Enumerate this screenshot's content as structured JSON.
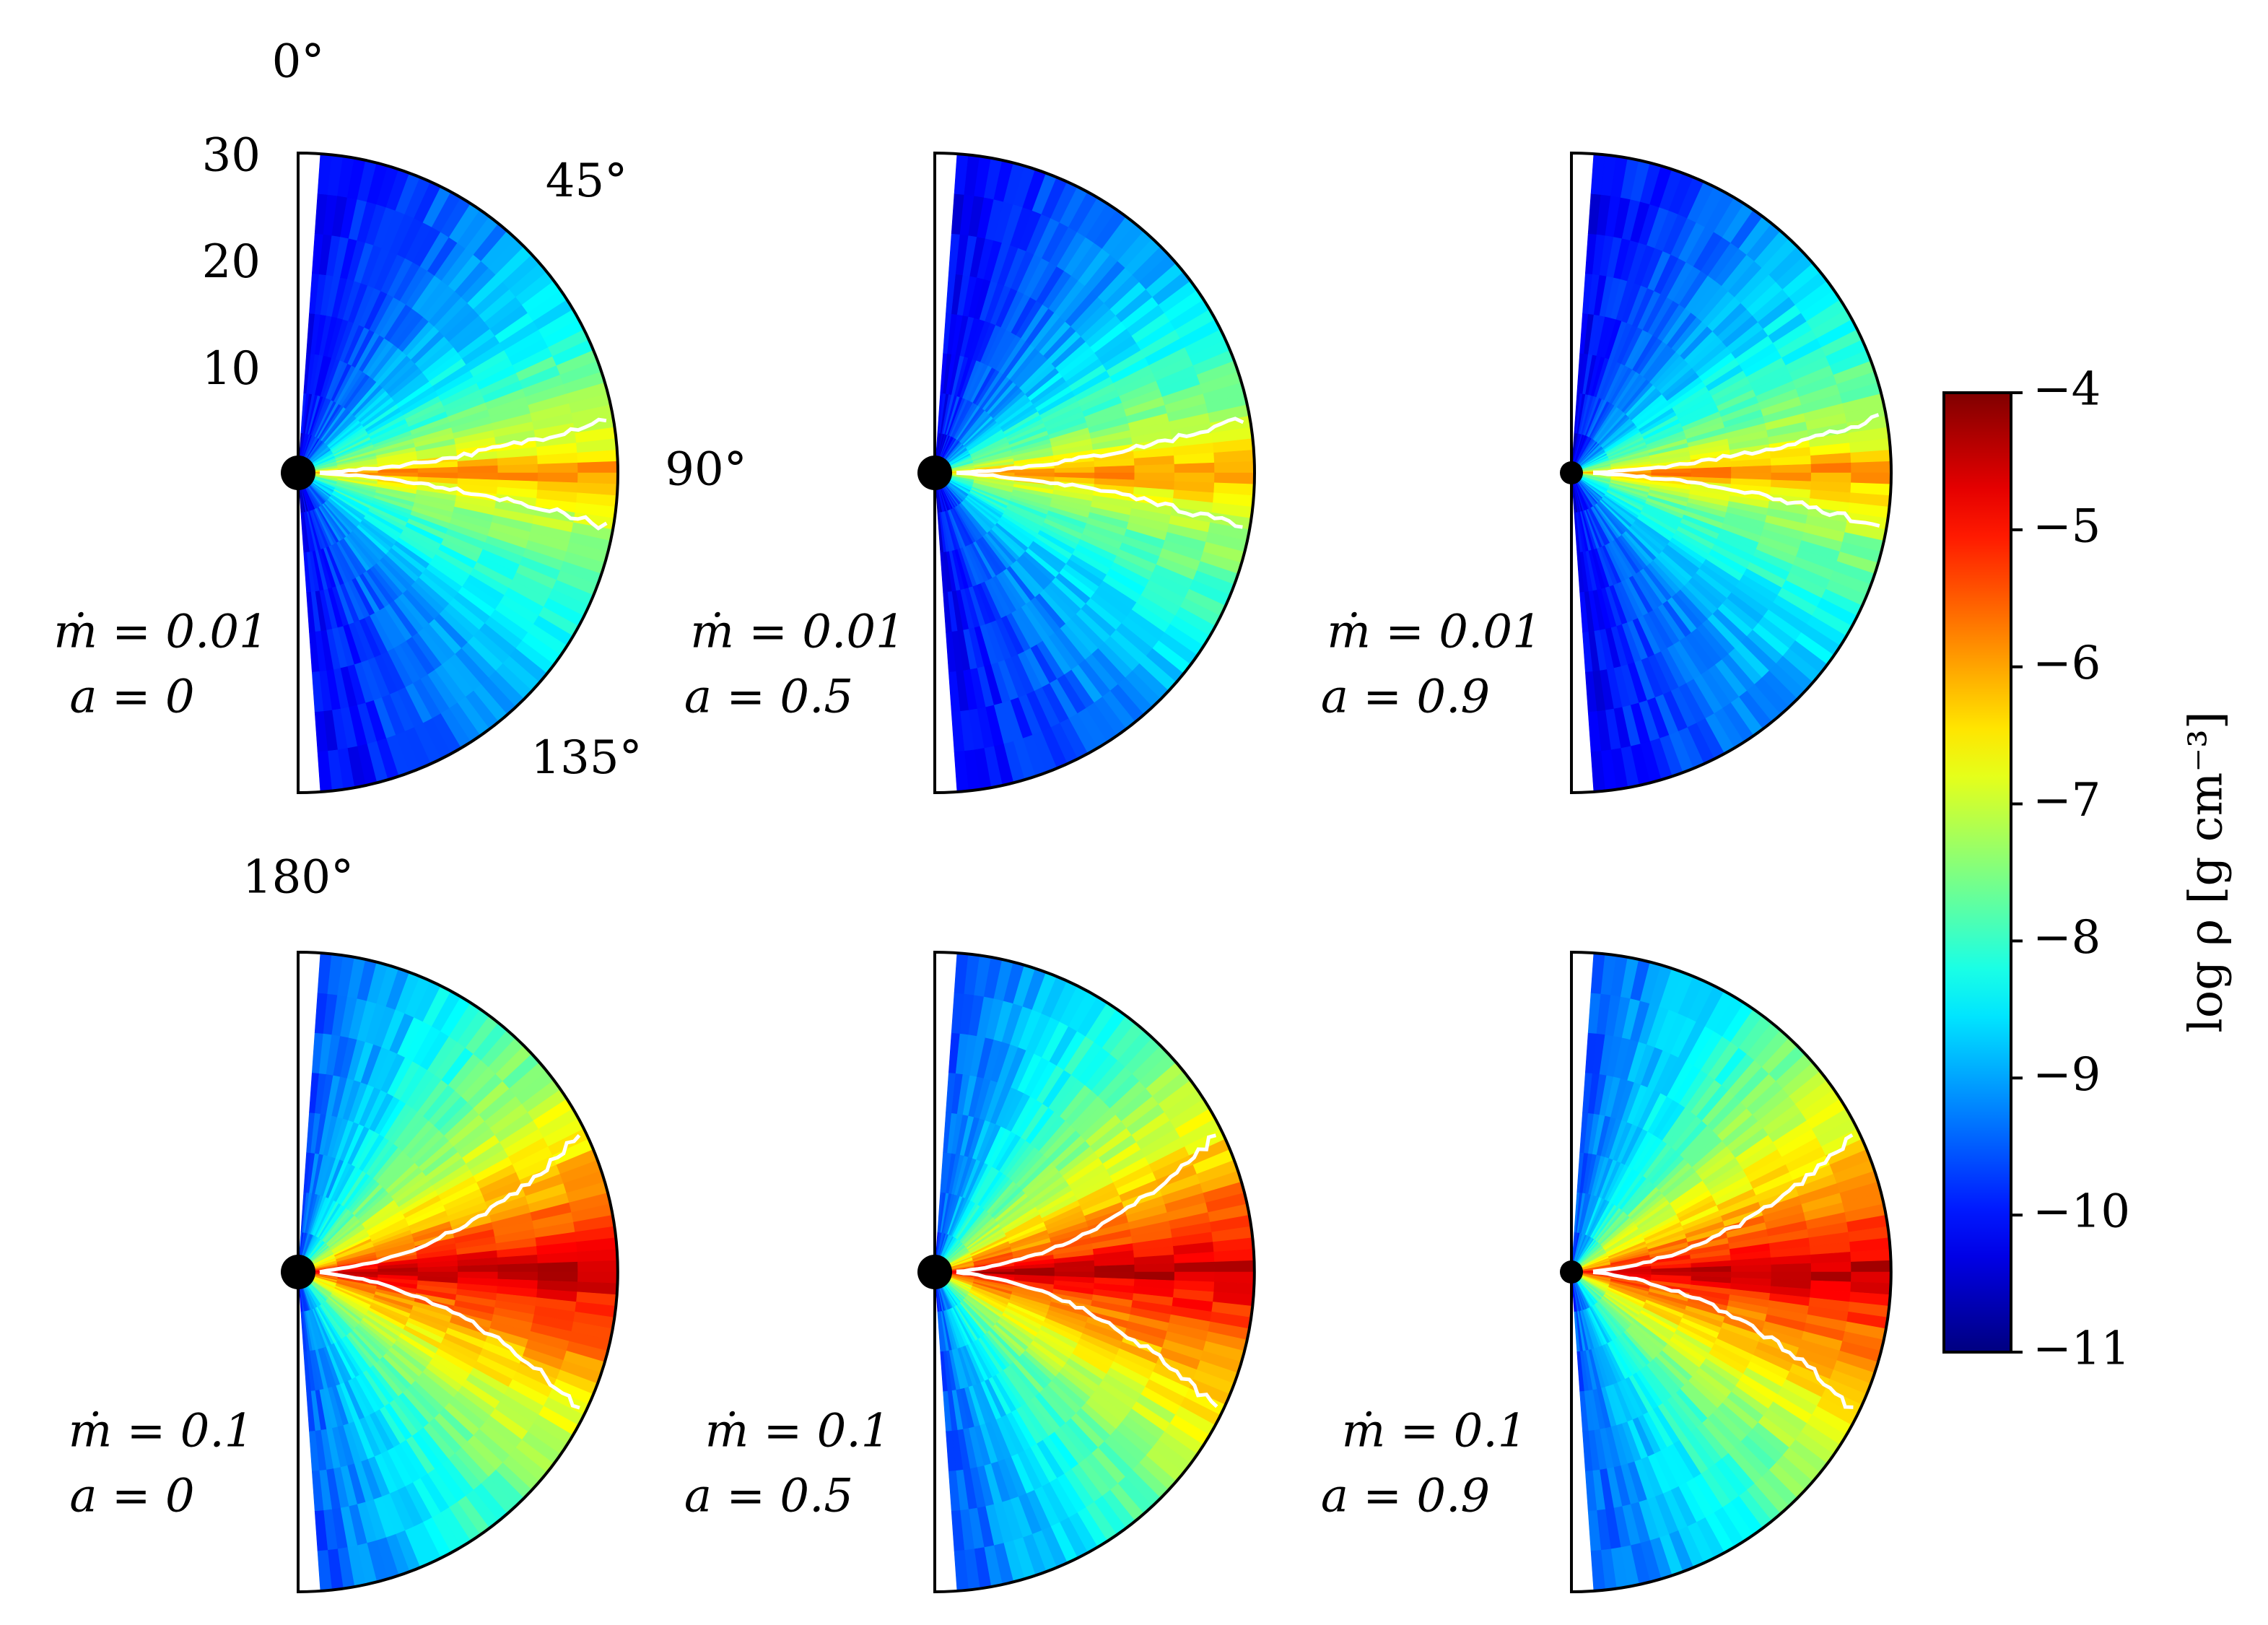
{
  "chart_data": {
    "type": "polar-density",
    "colormap": "jet",
    "rlim": [
      0,
      30
    ],
    "rticks": [
      10,
      20,
      30
    ],
    "theta_ticks": [
      {
        "value": 0,
        "label": "0°"
      },
      {
        "value": 45,
        "label": "45°"
      },
      {
        "value": 90,
        "label": "90°"
      },
      {
        "value": 135,
        "label": "135°"
      },
      {
        "value": 180,
        "label": "180°"
      }
    ],
    "panels": [
      {
        "mdot": "ṁ = 0.01",
        "spin": "a = 0"
      },
      {
        "mdot": "ṁ = 0.01",
        "spin": "a = 0.5"
      },
      {
        "mdot": "ṁ = 0.01",
        "spin": "a = 0.9"
      },
      {
        "mdot": "ṁ = 0.1",
        "spin": "a = 0"
      },
      {
        "mdot": "ṁ = 0.1",
        "spin": "a = 0.5"
      },
      {
        "mdot": "ṁ = 0.1",
        "spin": "a = 0.9"
      }
    ],
    "colorbar": {
      "label": "log ρ [g cm⁻³]",
      "lim": [
        -11,
        -4
      ],
      "ticks": [
        {
          "value": -11,
          "label": "−11"
        },
        {
          "value": -10,
          "label": "−10"
        },
        {
          "value": -9,
          "label": "−9"
        },
        {
          "value": -8,
          "label": "−8"
        },
        {
          "value": -7,
          "label": "−7"
        },
        {
          "value": -6,
          "label": "−6"
        },
        {
          "value": -5,
          "label": "−5"
        },
        {
          "value": -4,
          "label": "−4"
        }
      ]
    }
  }
}
